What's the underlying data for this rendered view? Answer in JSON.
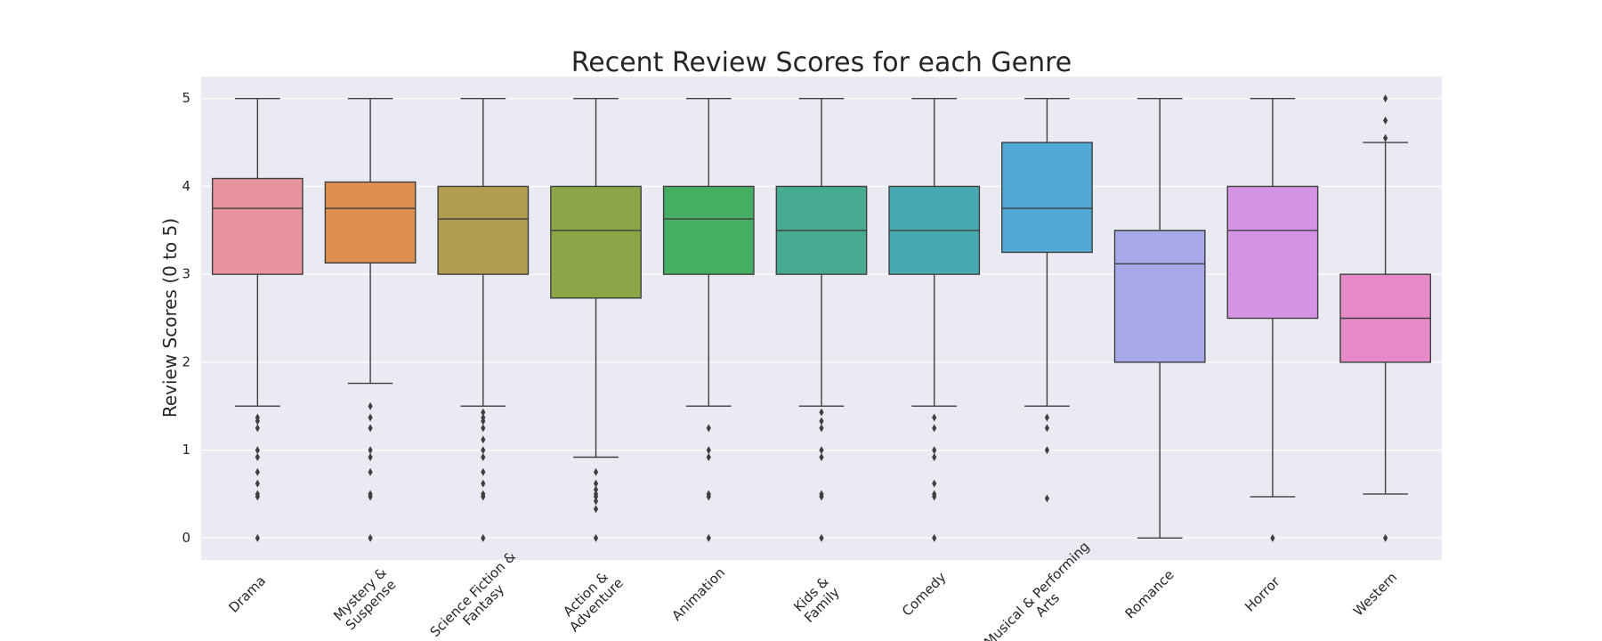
{
  "chart_data": {
    "type": "box",
    "title": "Recent Review Scores for each Genre",
    "y_label": "Review Scores (0 to 5)",
    "categories": [
      "Drama",
      "Mystery &\nSuspense",
      "Science Fiction &\nFantasy",
      "Action &\nAdventure",
      "Animation",
      "Kids &\nFamily",
      "Comedy",
      "Musical & Performing\nArts",
      "Romance",
      "Horror",
      "Western"
    ],
    "colors": [
      "#e8949f",
      "#dc8f4e",
      "#b29c4f",
      "#8ca546",
      "#46ae63",
      "#46ab91",
      "#48a9b0",
      "#51aad6",
      "#a7a9e9",
      "#d593e6",
      "#e68bc7"
    ],
    "boxes": [
      {
        "whislo": 1.5,
        "q1": 3.0,
        "med": 3.75,
        "q3": 4.09,
        "whishi": 5,
        "fliers": [
          0,
          0.47,
          0.5,
          0.62,
          0.75,
          0.92,
          1.0,
          1.25,
          1.33,
          1.37
        ]
      },
      {
        "whislo": 1.76,
        "q1": 3.13,
        "med": 3.75,
        "q3": 4.05,
        "whishi": 5,
        "fliers": [
          0,
          0.47,
          0.5,
          0.75,
          0.92,
          1.0,
          1.25,
          1.37,
          1.5
        ]
      },
      {
        "whislo": 1.5,
        "q1": 3.0,
        "med": 3.63,
        "q3": 4.0,
        "whishi": 5,
        "fliers": [
          0,
          0.47,
          0.5,
          0.62,
          0.75,
          0.92,
          1.0,
          1.12,
          1.25,
          1.33,
          1.37,
          1.43
        ]
      },
      {
        "whislo": 0.92,
        "q1": 2.73,
        "med": 3.5,
        "q3": 4.0,
        "whishi": 5,
        "fliers": [
          0,
          0.33,
          0.42,
          0.47,
          0.5,
          0.55,
          0.62,
          0.75
        ]
      },
      {
        "whislo": 1.5,
        "q1": 3.0,
        "med": 3.63,
        "q3": 4.0,
        "whishi": 5,
        "fliers": [
          0,
          0.47,
          0.5,
          0.92,
          1.0,
          1.25
        ]
      },
      {
        "whislo": 1.5,
        "q1": 3.0,
        "med": 3.5,
        "q3": 4.0,
        "whishi": 5,
        "fliers": [
          0,
          0.47,
          0.5,
          0.92,
          1.0,
          1.25,
          1.33,
          1.43
        ]
      },
      {
        "whislo": 1.5,
        "q1": 3.0,
        "med": 3.5,
        "q3": 4.0,
        "whishi": 5,
        "fliers": [
          0,
          0.47,
          0.5,
          0.62,
          0.92,
          1.0,
          1.25,
          1.37
        ]
      },
      {
        "whislo": 1.5,
        "q1": 3.25,
        "med": 3.75,
        "q3": 4.5,
        "whishi": 5,
        "fliers": [
          0.45,
          1.0,
          1.25,
          1.37
        ]
      },
      {
        "whislo": 0,
        "q1": 2.0,
        "med": 3.12,
        "q3": 3.5,
        "whishi": 5,
        "fliers": []
      },
      {
        "whislo": 0.47,
        "q1": 2.5,
        "med": 3.5,
        "q3": 4.0,
        "whishi": 5,
        "fliers": [
          0
        ]
      },
      {
        "whislo": 0.5,
        "q1": 2.0,
        "med": 2.5,
        "q3": 3.0,
        "whishi": 4.5,
        "fliers": [
          0,
          4.55,
          4.75,
          5
        ]
      }
    ],
    "ylim": [
      -0.25,
      5.25
    ],
    "yticks": [
      0,
      1,
      2,
      3,
      4,
      5
    ],
    "grid": true
  }
}
